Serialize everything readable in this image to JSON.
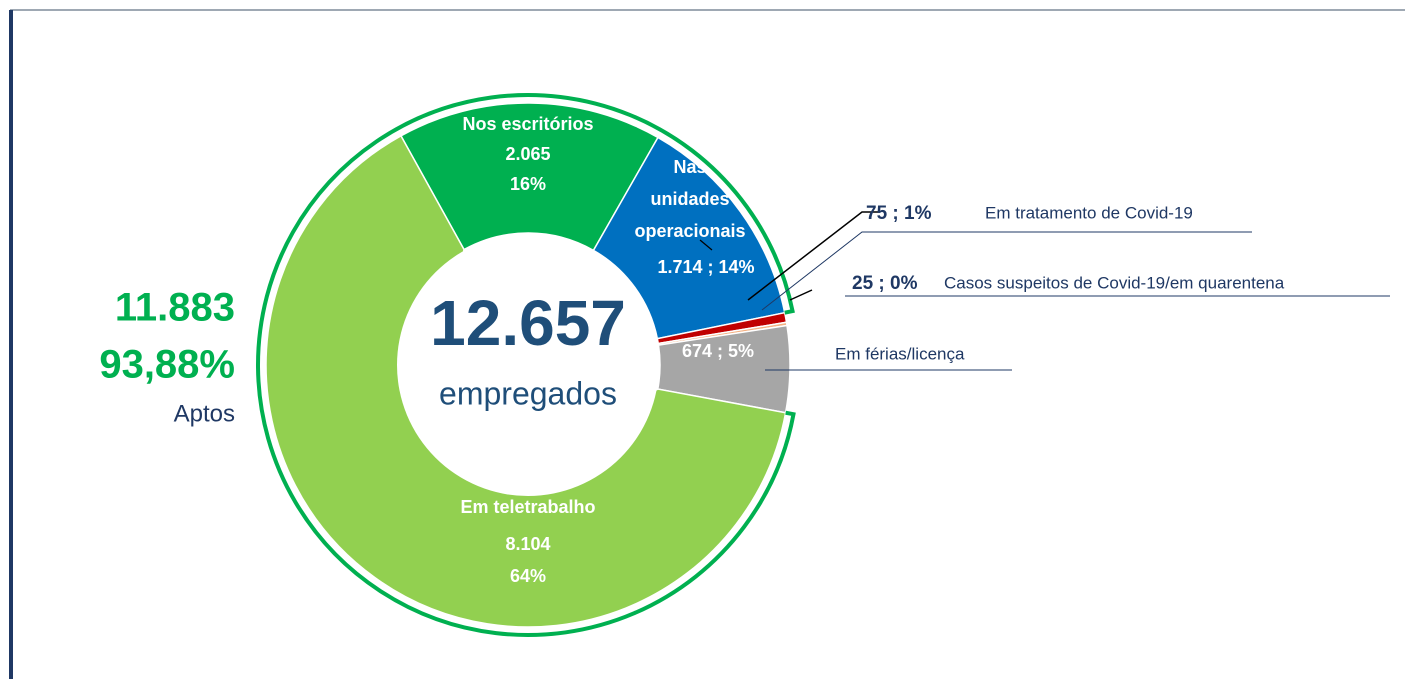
{
  "chart_data": {
    "type": "donut",
    "categories": [
      "Nos escritórios",
      "Nas unidades operacionais",
      "Em tratamento de Covid-19",
      "Casos suspeitos de Covid-19/em quarentena",
      "Em férias/licença",
      "Em teletrabalho"
    ],
    "values": [
      2065,
      1714,
      75,
      25,
      674,
      8104
    ],
    "value_labels": [
      "2.065",
      "1.714",
      "75",
      "25",
      "674",
      "8.104"
    ],
    "percents": [
      16,
      14,
      1,
      0,
      5,
      64
    ],
    "percent_labels": [
      "16%",
      "14%",
      "1%",
      "0%",
      "5%",
      "64%"
    ],
    "separator": " ; ",
    "colors": [
      "#00b050",
      "#0070c0",
      "#c00000",
      "#f4b183",
      "#a6a6a6",
      "#92d050"
    ],
    "total": 12657,
    "total_label": "12.657",
    "total_caption": "empregados",
    "aptos": {
      "value": 11883,
      "label": "11.883",
      "percent": 93.88,
      "percent_label": "93,88%",
      "caption": "Aptos"
    }
  }
}
